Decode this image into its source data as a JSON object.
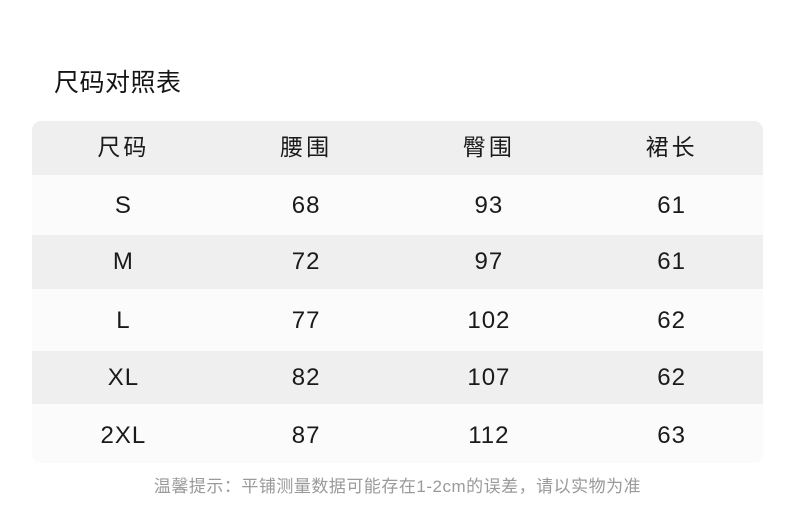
{
  "title": "尺码对照表",
  "chart_data": {
    "type": "table",
    "title": "尺码对照表",
    "columns": [
      "尺码",
      "腰围",
      "臀围",
      "裙长"
    ],
    "rows": [
      [
        "S",
        "68",
        "93",
        "61"
      ],
      [
        "M",
        "72",
        "97",
        "61"
      ],
      [
        "L",
        "77",
        "102",
        "62"
      ],
      [
        "XL",
        "82",
        "107",
        "62"
      ],
      [
        "2XL",
        "87",
        "112",
        "63"
      ]
    ],
    "note": "温馨提示：平铺测量数据可能存在1-2cm的误差，请以实物为准",
    "layout": {
      "striped_rows": [
        "header",
        "M",
        "XL"
      ],
      "grid": "off",
      "corner_radius_px": 9
    }
  },
  "colors": {
    "page_bg": "#ffffff",
    "table_bg": "#fbfbfb",
    "header_bg": "#efefef",
    "stripe_bg": "#efefef",
    "cell_text": "#1a1a1a",
    "title_text": "#151515",
    "note_text": "#9a9a9a"
  }
}
